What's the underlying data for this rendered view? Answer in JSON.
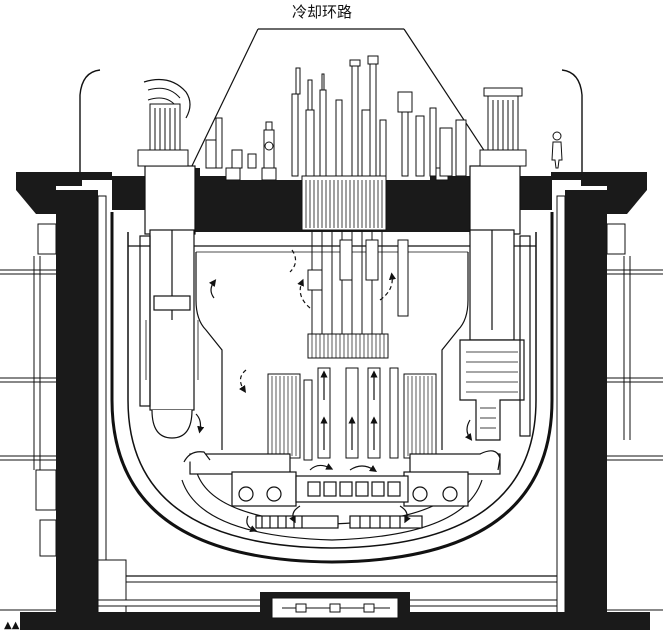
{
  "diagram": {
    "callout_label": "冷却环路"
  },
  "colors": {
    "ink": "#111111",
    "solid": "#1a1a1a",
    "paper": "#ffffff",
    "gray": "#7a7a7a"
  }
}
